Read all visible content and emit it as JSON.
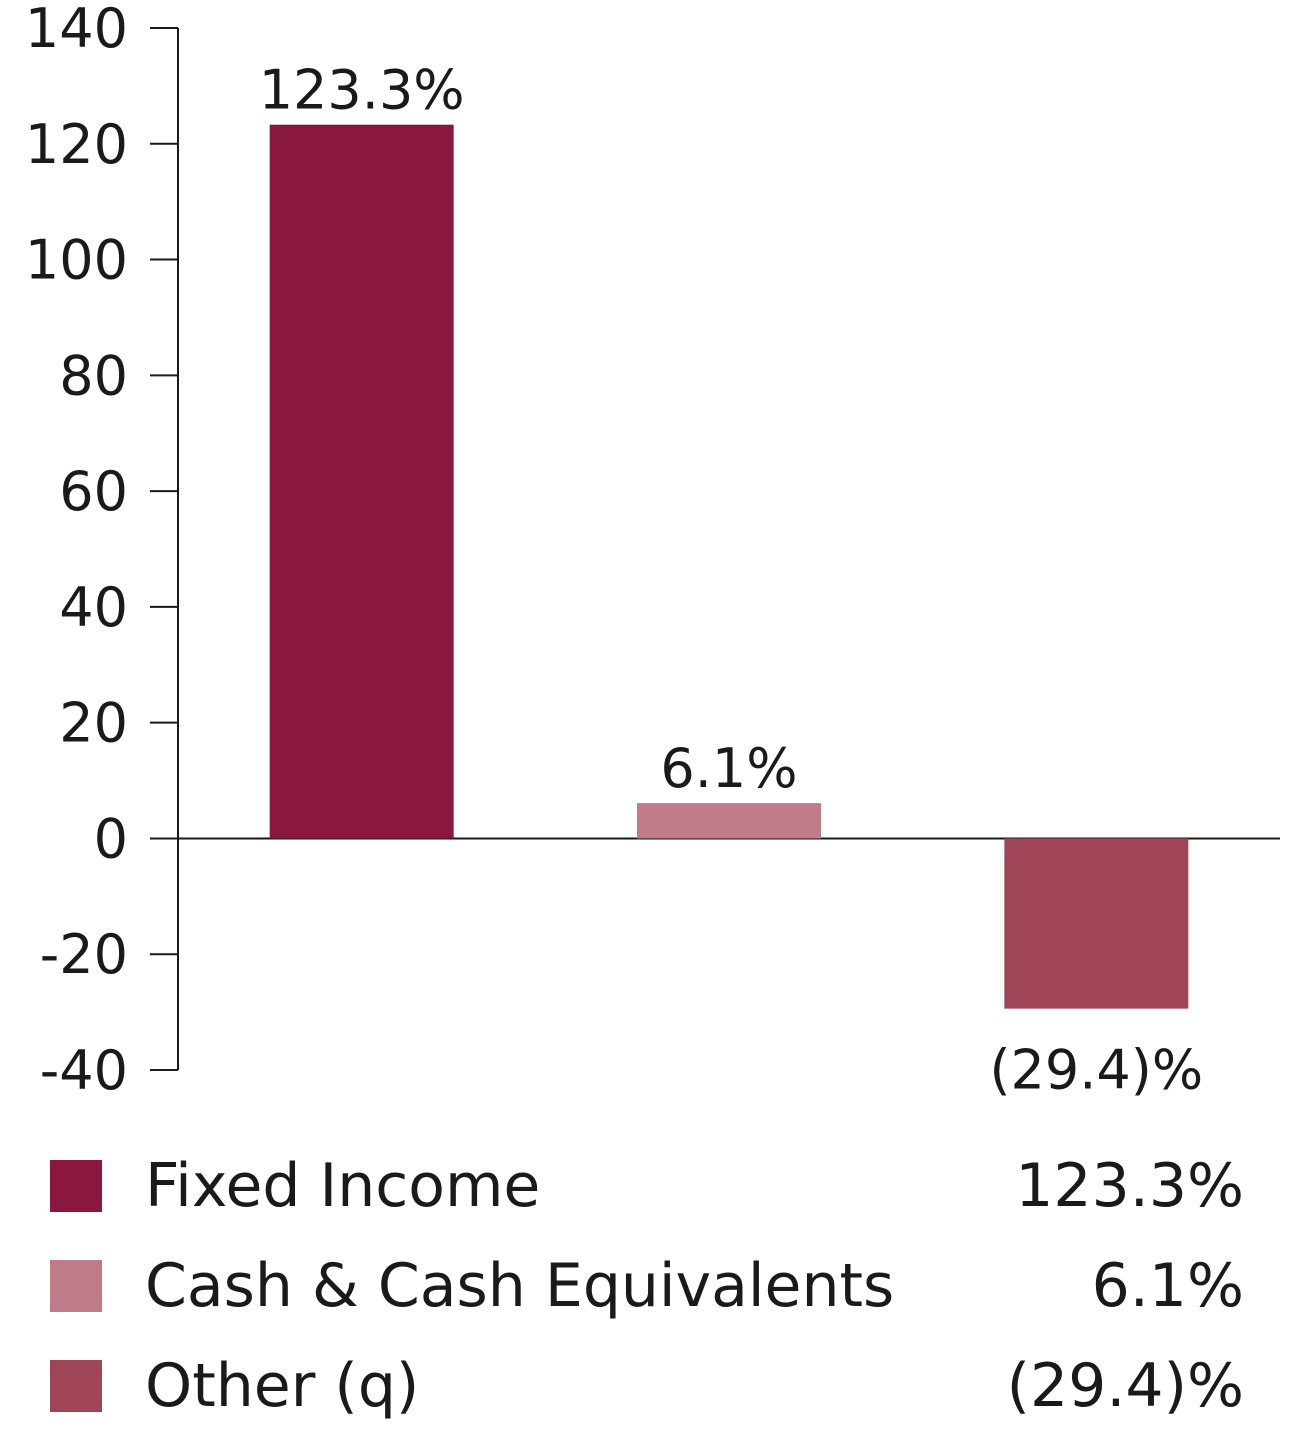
{
  "chart_data": {
    "type": "bar",
    "categories": [
      "Fixed Income",
      "Cash & Cash Equivalents",
      "Other (q)"
    ],
    "values": [
      123.3,
      6.1,
      -29.4
    ],
    "data_labels": [
      "123.3%",
      "6.1%",
      "(29.4)%"
    ],
    "colors": [
      "#8a173d",
      "#c07b88",
      "#a04558"
    ],
    "ylim": [
      -40,
      140
    ],
    "yticks": [
      140,
      120,
      100,
      80,
      60,
      40,
      20,
      0,
      -20,
      -40
    ],
    "title": "",
    "xlabel": "",
    "ylabel": "",
    "legend_position": "bottom"
  },
  "legend": [
    {
      "name": "Fixed Income",
      "value": "123.3%",
      "color": "#8a173d"
    },
    {
      "name": "Cash & Cash Equivalents",
      "value": "6.1%",
      "color": "#c07b88"
    },
    {
      "name": "Other (q)",
      "value": "(29.4)%",
      "color": "#a04558"
    }
  ]
}
